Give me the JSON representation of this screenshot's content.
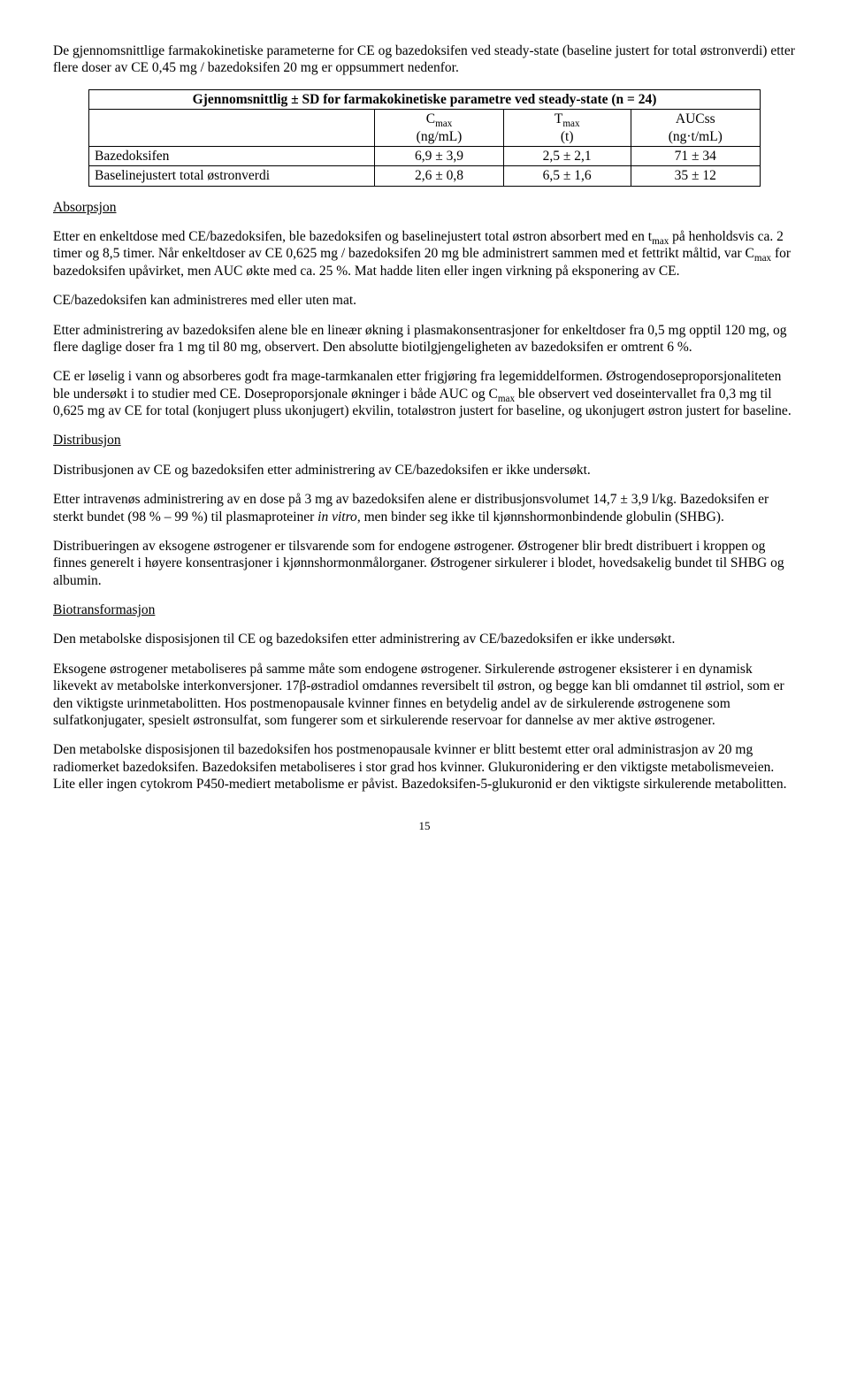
{
  "intro": "De gjennomsnittlige farmakokinetiske parameterne for CE og bazedoksifen ved steady-state (baseline justert for total østronverdi) etter flere doser av CE 0,45 mg / bazedoksifen 20 mg er oppsummert nedenfor.",
  "table": {
    "title": "Gjennomsnittlig ± SD for farmakokinetiske parametre ved steady-state (n = 24)",
    "columns": [
      {
        "label_html": "C<span class=\"sub\">max</span>",
        "unit": "(ng/mL)"
      },
      {
        "label_html": "T<span class=\"sub\">max</span>",
        "unit": "(t)"
      },
      {
        "label_html": "AUCss",
        "unit": "(ng·t/mL)"
      }
    ],
    "rows": [
      {
        "label": "Bazedoksifen",
        "v": [
          "6,9 ± 3,9",
          "2,5 ± 2,1",
          "71 ± 34"
        ]
      },
      {
        "label": "Baselinejustert total østronverdi",
        "v": [
          "2,6 ± 0,8",
          "6,5 ± 1,6",
          "35 ± 12"
        ]
      }
    ]
  },
  "sections": {
    "absorpsjon": {
      "heading": "Absorpsjon",
      "paras": [
        "Etter en enkeltdose med CE/bazedoksifen, ble bazedoksifen og baselinejustert total østron absorbert med en t<span class=\"sub\">max</span> på henholdsvis ca. 2 timer og 8,5 timer. Når enkeltdoser av CE 0,625 mg / bazedoksifen 20 mg ble administrert sammen med et fettrikt måltid, var C<span class=\"sub\">max</span> for bazedoksifen upåvirket, men AUC økte med ca. 25 %. Mat hadde liten eller ingen virkning på eksponering av CE.",
        "CE/bazedoksifen kan administreres med eller uten mat.",
        "Etter administrering av bazedoksifen alene ble en lineær økning i plasmakonsentrasjoner for enkeltdoser fra 0,5 mg opptil 120 mg, og flere daglige doser fra 1 mg til 80 mg, observert. Den absolutte biotilgjengeligheten av bazedoksifen er omtrent 6 %.",
        "CE er løselig i vann og absorberes godt fra mage-tarmkanalen etter frigjøring fra legemiddelformen. Østrogendoseproporsjonaliteten ble undersøkt i to studier med CE. Doseproporsjonale økninger i både AUC og C<span class=\"sub\">max</span> ble observert ved doseintervallet fra 0,3 mg til 0,625 mg av CE for total (konjugert pluss ukonjugert) ekvilin, totaløstron justert for baseline, og ukonjugert østron justert for baseline."
      ]
    },
    "distribusjon": {
      "heading": "Distribusjon",
      "paras": [
        "Distribusjonen av CE og bazedoksifen etter administrering av CE/bazedoksifen er ikke undersøkt.",
        "Etter intravenøs administrering av en dose på 3 mg av bazedoksifen alene er distribusjonsvolumet 14,7 ± 3,9 l/kg. Bazedoksifen er sterkt bundet (98 % – 99 %) til plasmaproteiner <span class=\"italic\">in vitro</span>, men binder seg ikke til kjønnshormonbindende globulin (SHBG).",
        "Distribueringen av eksogene østrogener er tilsvarende som for endogene østrogener. Østrogener blir bredt distribuert i kroppen og finnes generelt i høyere konsentrasjoner i kjønnshormonmålorganer. Østrogener sirkulerer i blodet, hovedsakelig bundet til SHBG og albumin."
      ]
    },
    "biotransformasjon": {
      "heading": "Biotransformasjon",
      "paras": [
        "Den metabolske disposisjonen til CE og bazedoksifen etter administrering av CE/bazedoksifen er ikke undersøkt.",
        "Eksogene østrogener metaboliseres på samme måte som endogene østrogener. Sirkulerende østrogener eksisterer i en dynamisk likevekt av metabolske interkonversjoner. 17β-østradiol omdannes reversibelt til østron, og begge kan bli omdannet til østriol, som er den viktigste urinmetabolitten. Hos postmenopausale kvinner finnes en betydelig andel av de sirkulerende østrogenene som sulfatkonjugater, spesielt østronsulfat, som fungerer som et sirkulerende reservoar for dannelse av mer aktive østrogener.",
        "Den metabolske disposisjonen til bazedoksifen hos postmenopausale kvinner er blitt bestemt etter oral administrasjon av 20 mg radiomerket bazedoksifen. Bazedoksifen metaboliseres i stor grad hos kvinner. Glukuronidering er den viktigste metabolismeveien. Lite eller ingen cytokrom P450-mediert metabolisme er påvist. Bazedoksifen-5-glukuronid er den viktigste sirkulerende metabolitten."
      ]
    }
  },
  "page_number": "15"
}
